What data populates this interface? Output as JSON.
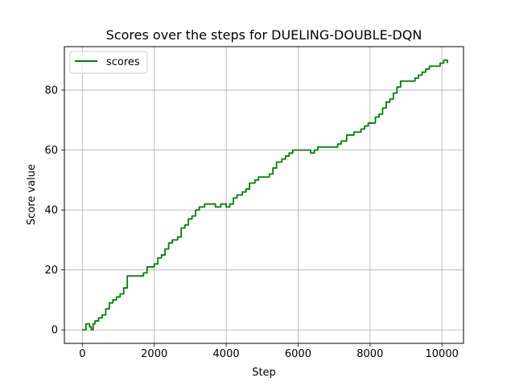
{
  "chart_data": {
    "type": "line",
    "title": "Scores over the steps for DUELING-DOUBLE-DQN",
    "xlabel": "Step",
    "ylabel": "Score value",
    "xlim": [
      -500,
      10600
    ],
    "ylim": [
      -4.5,
      94.5
    ],
    "xticks": [
      0,
      2000,
      4000,
      6000,
      8000,
      10000
    ],
    "yticks": [
      0,
      20,
      40,
      60,
      80
    ],
    "grid": true,
    "legend": "top-left",
    "series": [
      {
        "name": "scores",
        "color": "#008000",
        "points": [
          [
            0,
            0
          ],
          [
            100,
            2
          ],
          [
            200,
            1
          ],
          [
            250,
            0
          ],
          [
            300,
            2
          ],
          [
            350,
            3
          ],
          [
            450,
            4
          ],
          [
            550,
            5
          ],
          [
            650,
            7
          ],
          [
            750,
            9
          ],
          [
            850,
            10
          ],
          [
            950,
            11
          ],
          [
            1050,
            12
          ],
          [
            1150,
            14
          ],
          [
            1250,
            18
          ],
          [
            1400,
            18
          ],
          [
            1550,
            18
          ],
          [
            1700,
            19
          ],
          [
            1800,
            21
          ],
          [
            1900,
            21
          ],
          [
            2000,
            22
          ],
          [
            2100,
            24
          ],
          [
            2200,
            25
          ],
          [
            2300,
            27
          ],
          [
            2400,
            29
          ],
          [
            2500,
            30
          ],
          [
            2650,
            31
          ],
          [
            2750,
            34
          ],
          [
            2850,
            35
          ],
          [
            2950,
            37
          ],
          [
            3050,
            38
          ],
          [
            3150,
            40
          ],
          [
            3250,
            41
          ],
          [
            3400,
            42
          ],
          [
            3550,
            42
          ],
          [
            3700,
            41
          ],
          [
            3850,
            42
          ],
          [
            4000,
            41
          ],
          [
            4100,
            42
          ],
          [
            4200,
            44
          ],
          [
            4300,
            45
          ],
          [
            4450,
            46
          ],
          [
            4550,
            47
          ],
          [
            4650,
            49
          ],
          [
            4800,
            50
          ],
          [
            4900,
            51
          ],
          [
            5000,
            51
          ],
          [
            5100,
            51
          ],
          [
            5200,
            52
          ],
          [
            5300,
            54
          ],
          [
            5400,
            56
          ],
          [
            5550,
            57
          ],
          [
            5650,
            58
          ],
          [
            5750,
            59
          ],
          [
            5850,
            60
          ],
          [
            6000,
            60
          ],
          [
            6150,
            60
          ],
          [
            6250,
            60
          ],
          [
            6350,
            59
          ],
          [
            6450,
            60
          ],
          [
            6550,
            61
          ],
          [
            6700,
            61
          ],
          [
            6850,
            61
          ],
          [
            7000,
            61
          ],
          [
            7100,
            62
          ],
          [
            7200,
            63
          ],
          [
            7350,
            65
          ],
          [
            7450,
            65
          ],
          [
            7550,
            66
          ],
          [
            7650,
            66
          ],
          [
            7750,
            67
          ],
          [
            7850,
            68
          ],
          [
            7950,
            69
          ],
          [
            8050,
            69
          ],
          [
            8150,
            71
          ],
          [
            8250,
            72
          ],
          [
            8350,
            74
          ],
          [
            8450,
            76
          ],
          [
            8550,
            77
          ],
          [
            8650,
            79
          ],
          [
            8750,
            81
          ],
          [
            8850,
            83
          ],
          [
            8950,
            83
          ],
          [
            9050,
            83
          ],
          [
            9150,
            83
          ],
          [
            9250,
            84
          ],
          [
            9350,
            85
          ],
          [
            9450,
            86
          ],
          [
            9550,
            87
          ],
          [
            9650,
            88
          ],
          [
            9750,
            88
          ],
          [
            9850,
            88
          ],
          [
            9950,
            89
          ],
          [
            10050,
            90
          ],
          [
            10150,
            89
          ]
        ]
      }
    ]
  }
}
